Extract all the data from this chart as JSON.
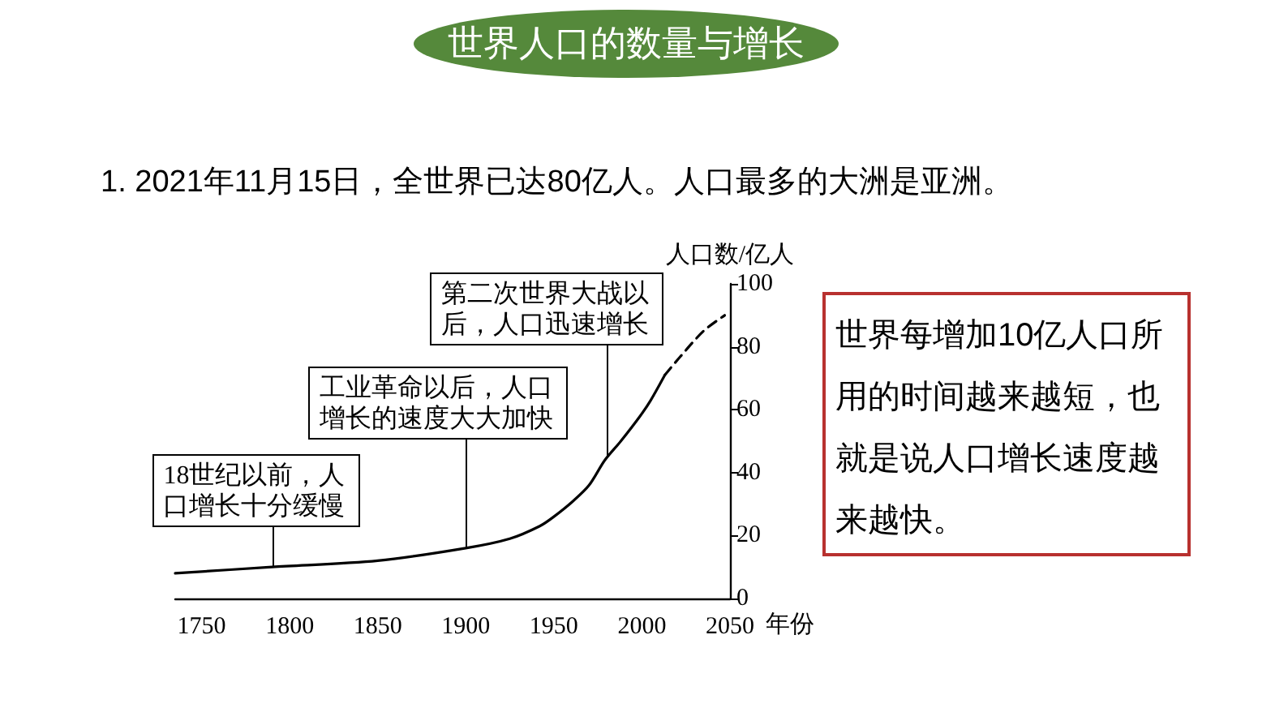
{
  "chart_data": {
    "type": "line",
    "title": "世界人口的数量与增长",
    "subtitle": "1. 2021年11月15日，全世界已达80亿人。人口最多的大洲是亚洲。",
    "xlabel": "年份",
    "ylabel": "人口数/亿人",
    "annotations": [
      {
        "text": "18世纪以前，人口增长十分缓慢",
        "x": 1790,
        "y": 10
      },
      {
        "text": "工业革命以后，人口增长的速度大大加快",
        "x": 1900,
        "y": 16
      },
      {
        "text": "第二次世界大战以后，人口迅速增长",
        "x": 1980,
        "y": 45
      },
      "世界每增加10亿人口所用的时间越来越短，也就是说人口增长速度越来越快。"
    ],
    "series": [
      {
        "color": "#000000",
        "x": [
          1735,
          1790,
          1850,
          1900,
          1925,
          1942,
          1950,
          1961,
          1970,
          1979,
          1988,
          1999,
          2005,
          2013
        ],
        "values": [
          8,
          10,
          12,
          16,
          19,
          23,
          26,
          31,
          36,
          44,
          50,
          58,
          63,
          71
        ]
      },
      {
        "color": "#000000",
        "line_style": "dashed",
        "x": [
          2013,
          2022,
          2035,
          2047
        ],
        "values": [
          71,
          77,
          85,
          90
        ]
      }
    ],
    "xlim": [
      1735,
      2050
    ],
    "xticks": [
      1750,
      1800,
      1850,
      1900,
      1950,
      2000,
      2050
    ],
    "ylim": [
      0,
      100
    ],
    "yticks": [
      0,
      20,
      40,
      60,
      80,
      100
    ],
    "marker": "none"
  }
}
